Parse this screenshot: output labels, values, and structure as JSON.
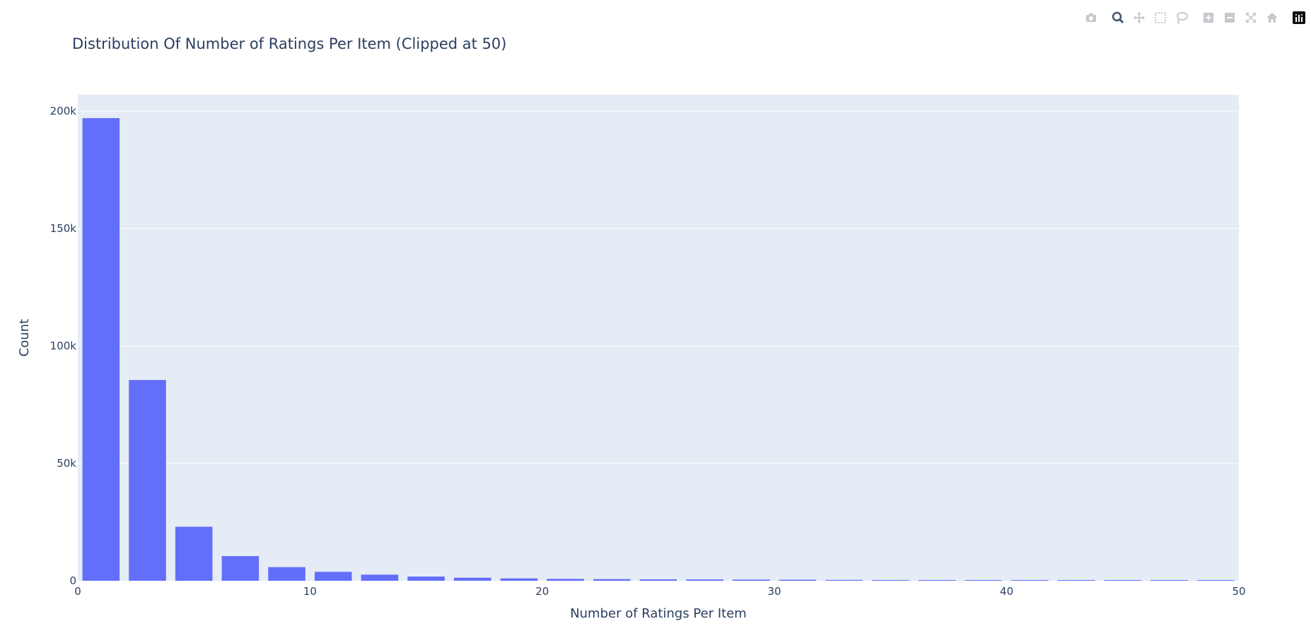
{
  "chart_data": {
    "type": "bar",
    "title": "Distribution Of Number of Ratings Per Item (Clipped at 50)",
    "xlabel": "Number of Ratings Per Item",
    "ylabel": "Count",
    "xlim": [
      0,
      50
    ],
    "ylim": [
      0,
      200000
    ],
    "bin_width": 2,
    "x_ticks": [
      {
        "value": 0,
        "label": "0"
      },
      {
        "value": 10,
        "label": "10"
      },
      {
        "value": 20,
        "label": "20"
      },
      {
        "value": 30,
        "label": "30"
      },
      {
        "value": 40,
        "label": "40"
      },
      {
        "value": 50,
        "label": "50"
      }
    ],
    "y_ticks": [
      {
        "value": 0,
        "label": "0"
      },
      {
        "value": 50000,
        "label": "50k"
      },
      {
        "value": 100000,
        "label": "100k"
      },
      {
        "value": 150000,
        "label": "150k"
      },
      {
        "value": 200000,
        "label": "200k"
      }
    ],
    "grid": true,
    "bar_color": "#636efa",
    "plot_bg": "#e5ecf6",
    "bins": [
      {
        "x0": 0,
        "x1": 2,
        "value": 197000
      },
      {
        "x0": 2,
        "x1": 4,
        "value": 85500
      },
      {
        "x0": 4,
        "x1": 6,
        "value": 23000
      },
      {
        "x0": 6,
        "x1": 8,
        "value": 10500
      },
      {
        "x0": 8,
        "x1": 10,
        "value": 5800
      },
      {
        "x0": 10,
        "x1": 12,
        "value": 3800
      },
      {
        "x0": 12,
        "x1": 14,
        "value": 2600
      },
      {
        "x0": 14,
        "x1": 16,
        "value": 1800
      },
      {
        "x0": 16,
        "x1": 18,
        "value": 1300
      },
      {
        "x0": 18,
        "x1": 20,
        "value": 1000
      },
      {
        "x0": 20,
        "x1": 22,
        "value": 800
      },
      {
        "x0": 22,
        "x1": 24,
        "value": 700
      },
      {
        "x0": 24,
        "x1": 26,
        "value": 600
      },
      {
        "x0": 26,
        "x1": 28,
        "value": 550
      },
      {
        "x0": 28,
        "x1": 30,
        "value": 500
      },
      {
        "x0": 30,
        "x1": 32,
        "value": 450
      },
      {
        "x0": 32,
        "x1": 34,
        "value": 350
      },
      {
        "x0": 34,
        "x1": 36,
        "value": 300
      },
      {
        "x0": 36,
        "x1": 38,
        "value": 280
      },
      {
        "x0": 38,
        "x1": 40,
        "value": 260
      },
      {
        "x0": 40,
        "x1": 42,
        "value": 240
      },
      {
        "x0": 42,
        "x1": 44,
        "value": 220
      },
      {
        "x0": 44,
        "x1": 46,
        "value": 200
      },
      {
        "x0": 46,
        "x1": 48,
        "value": 190
      },
      {
        "x0": 48,
        "x1": 50,
        "value": 180
      }
    ]
  },
  "modebar": {
    "groups": [
      [
        "camera-icon"
      ],
      [
        "zoom-icon",
        "pan-icon",
        "box-select-icon",
        "lasso-select-icon"
      ],
      [
        "zoom-in-icon",
        "zoom-out-icon",
        "autoscale-icon",
        "reset-axes-icon"
      ],
      [
        "plotly-logo-icon"
      ]
    ],
    "active": "zoom-icon",
    "icon_color": "#c5c8cc",
    "active_color": "#44546a"
  }
}
